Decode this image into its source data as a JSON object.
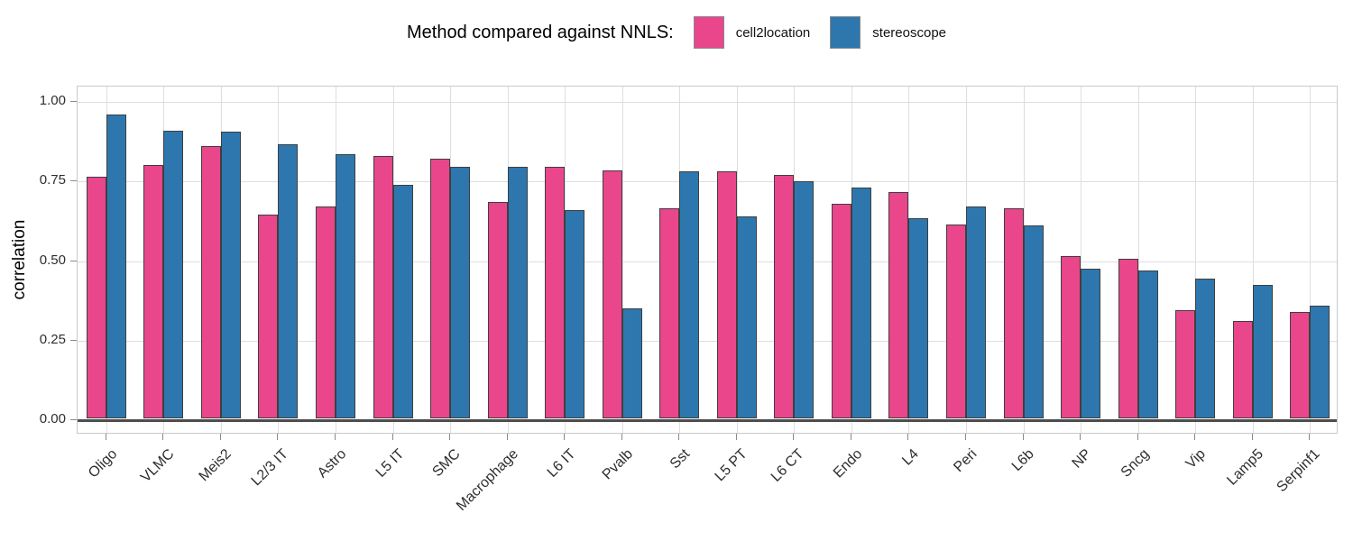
{
  "legend": {
    "title": "Method compared against NNLS:",
    "items": [
      {
        "label": "cell2location",
        "color": "#E9468C"
      },
      {
        "label": "stereoscope",
        "color": "#2D77AE"
      }
    ]
  },
  "chart_data": {
    "type": "bar",
    "title": "Method compared against NNLS:",
    "xlabel": "",
    "ylabel": "correlation",
    "ylim": [
      0,
      1.0
    ],
    "yticks": [
      0,
      0.25,
      0.5,
      0.75,
      1.0
    ],
    "ytick_labels": [
      "0.00",
      "0.25",
      "0.50",
      "0.75",
      "1.00"
    ],
    "grid": "major-on",
    "legend_position": "top",
    "bar_edge_color": "#3f3f3f",
    "categories": [
      "Oligo",
      "VLMC",
      "Meis2",
      "L2/3 IT",
      "Astro",
      "L5 IT",
      "SMC",
      "Macrophage",
      "L6 IT",
      "Pvalb",
      "Sst",
      "L5 PT",
      "L6 CT",
      "Endo",
      "L4",
      "Peri",
      "L6b",
      "NP",
      "Sncg",
      "Vip",
      "Lamp5",
      "Serpinf1"
    ],
    "series": [
      {
        "name": "cell2location",
        "color": "#E9468C",
        "values": [
          0.76,
          0.795,
          0.855,
          0.64,
          0.665,
          0.825,
          0.815,
          0.68,
          0.79,
          0.78,
          0.66,
          0.775,
          0.765,
          0.675,
          0.71,
          0.61,
          0.66,
          0.51,
          0.5,
          0.34,
          0.305,
          0.335
        ]
      },
      {
        "name": "stereoscope",
        "color": "#2D77AE",
        "values": [
          0.955,
          0.905,
          0.9,
          0.86,
          0.83,
          0.735,
          0.79,
          0.79,
          0.655,
          0.345,
          0.775,
          0.635,
          0.745,
          0.725,
          0.63,
          0.665,
          0.605,
          0.47,
          0.465,
          0.44,
          0.42,
          0.355
        ]
      }
    ]
  }
}
